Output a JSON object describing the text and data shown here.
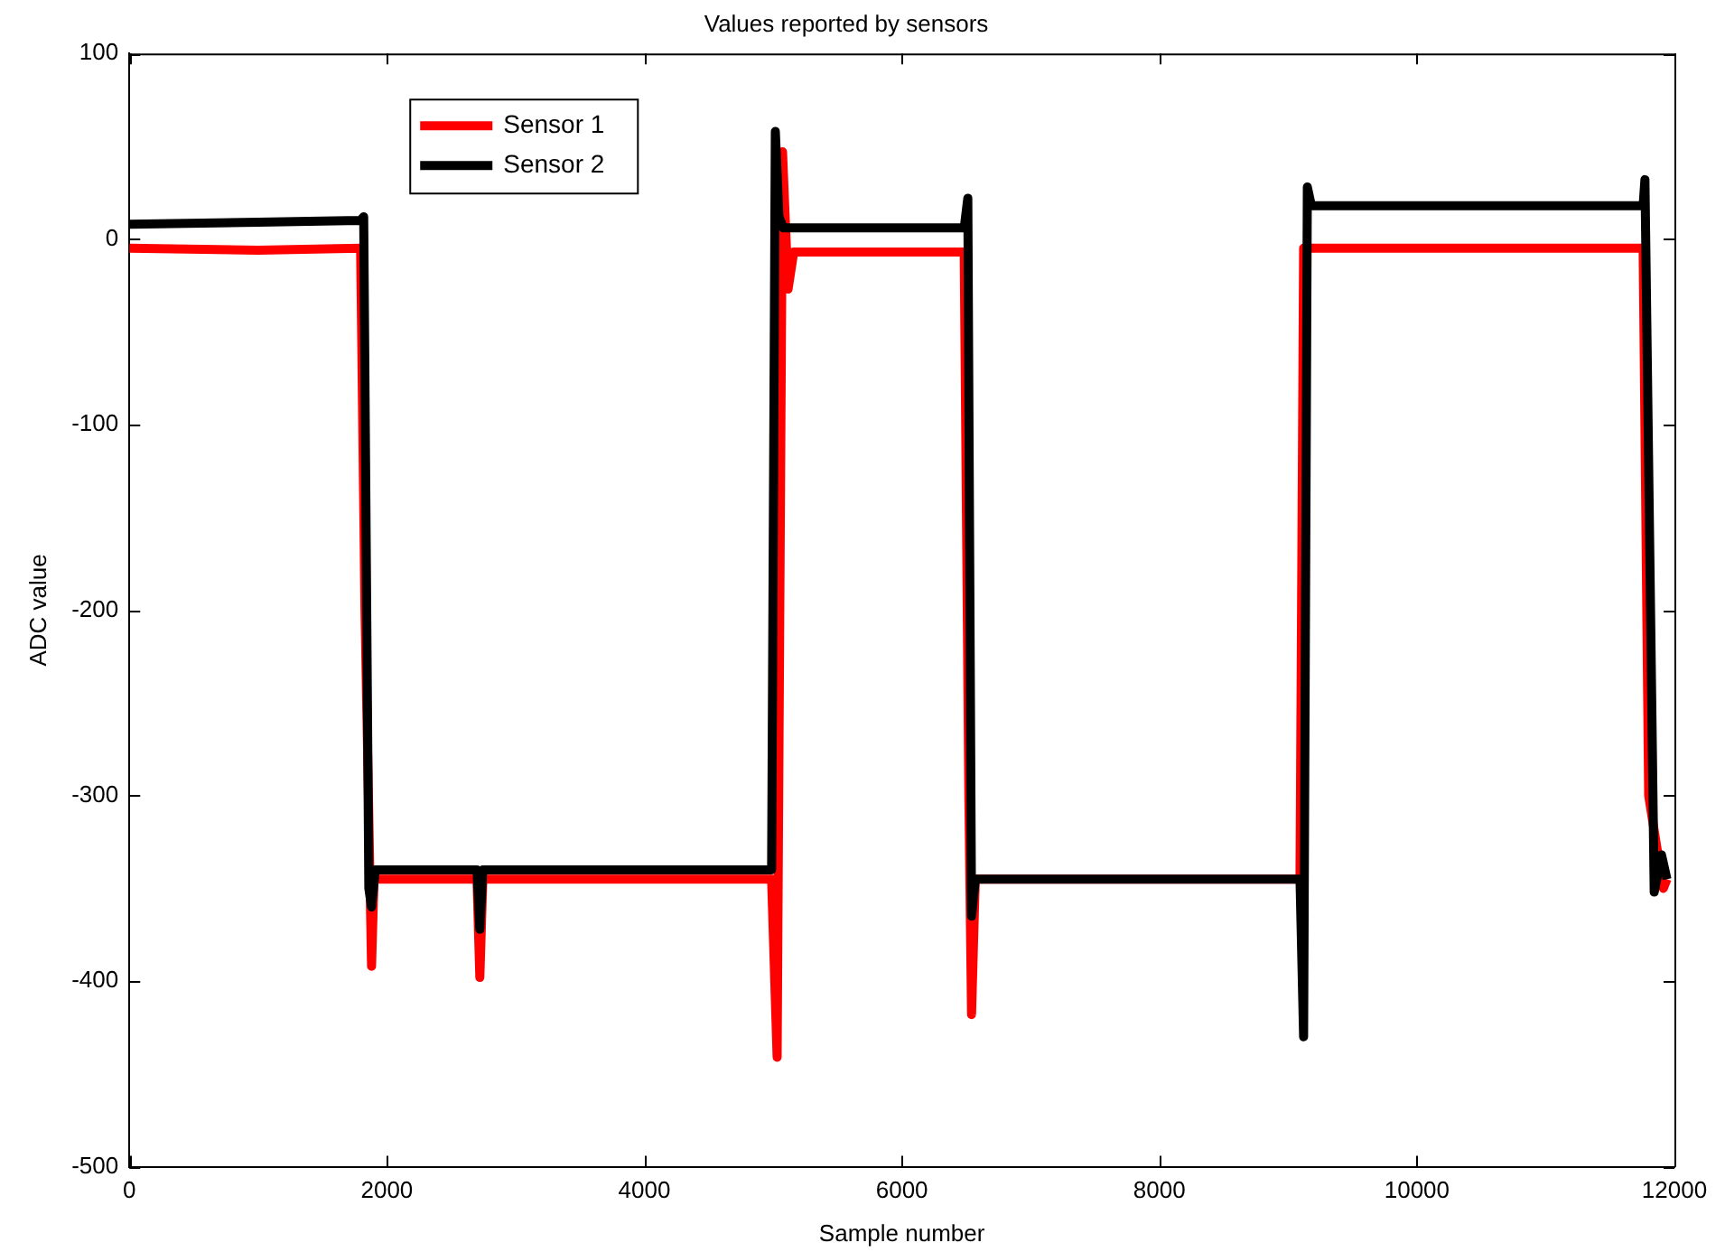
{
  "chart_data": {
    "type": "line",
    "title": "Values reported by sensors",
    "xlabel": "Sample number",
    "ylabel": "ADC value",
    "xlim": [
      0,
      12000
    ],
    "xticks": [
      0,
      2000,
      4000,
      6000,
      8000,
      10000,
      12000
    ],
    "ylim": [
      -500,
      100
    ],
    "yticks": [
      -500,
      -400,
      -300,
      -200,
      -100,
      0,
      100
    ],
    "grid": false,
    "legend": "top left",
    "marker": "none",
    "line_style": "solid",
    "series": [
      {
        "name": "Sensor 1",
        "color": "#ff0000",
        "x": [
          0,
          1000,
          1796,
          1830,
          1881,
          1900,
          2700,
          2722,
          2745,
          4988,
          5031,
          5073,
          5116,
          5160,
          6484,
          6520,
          6541,
          6570,
          9092,
          9120,
          11757,
          11800,
          11914,
          11942
        ],
        "values": [
          -5,
          -6,
          -5,
          -200,
          -392,
          -345,
          -345,
          -398,
          -345,
          -345,
          -441,
          47,
          -27,
          -7,
          -7,
          -300,
          -418,
          -345,
          -345,
          -5,
          -5,
          -300,
          -350,
          -345
        ]
      },
      {
        "name": "Sensor 2",
        "color": "#000000",
        "x": [
          0,
          1000,
          1796,
          1820,
          1860,
          1881,
          1910,
          2700,
          2722,
          2745,
          4988,
          5017,
          5045,
          5080,
          6484,
          6512,
          6541,
          6570,
          9092,
          9120,
          9149,
          9180,
          11757,
          11771,
          11843,
          11900,
          11942
        ],
        "values": [
          8,
          9,
          10,
          12,
          -350,
          -360,
          -340,
          -340,
          -372,
          -340,
          -340,
          58,
          12,
          6,
          6,
          22,
          -365,
          -345,
          -345,
          -430,
          28,
          18,
          18,
          32,
          -352,
          -332,
          -345
        ]
      }
    ]
  }
}
